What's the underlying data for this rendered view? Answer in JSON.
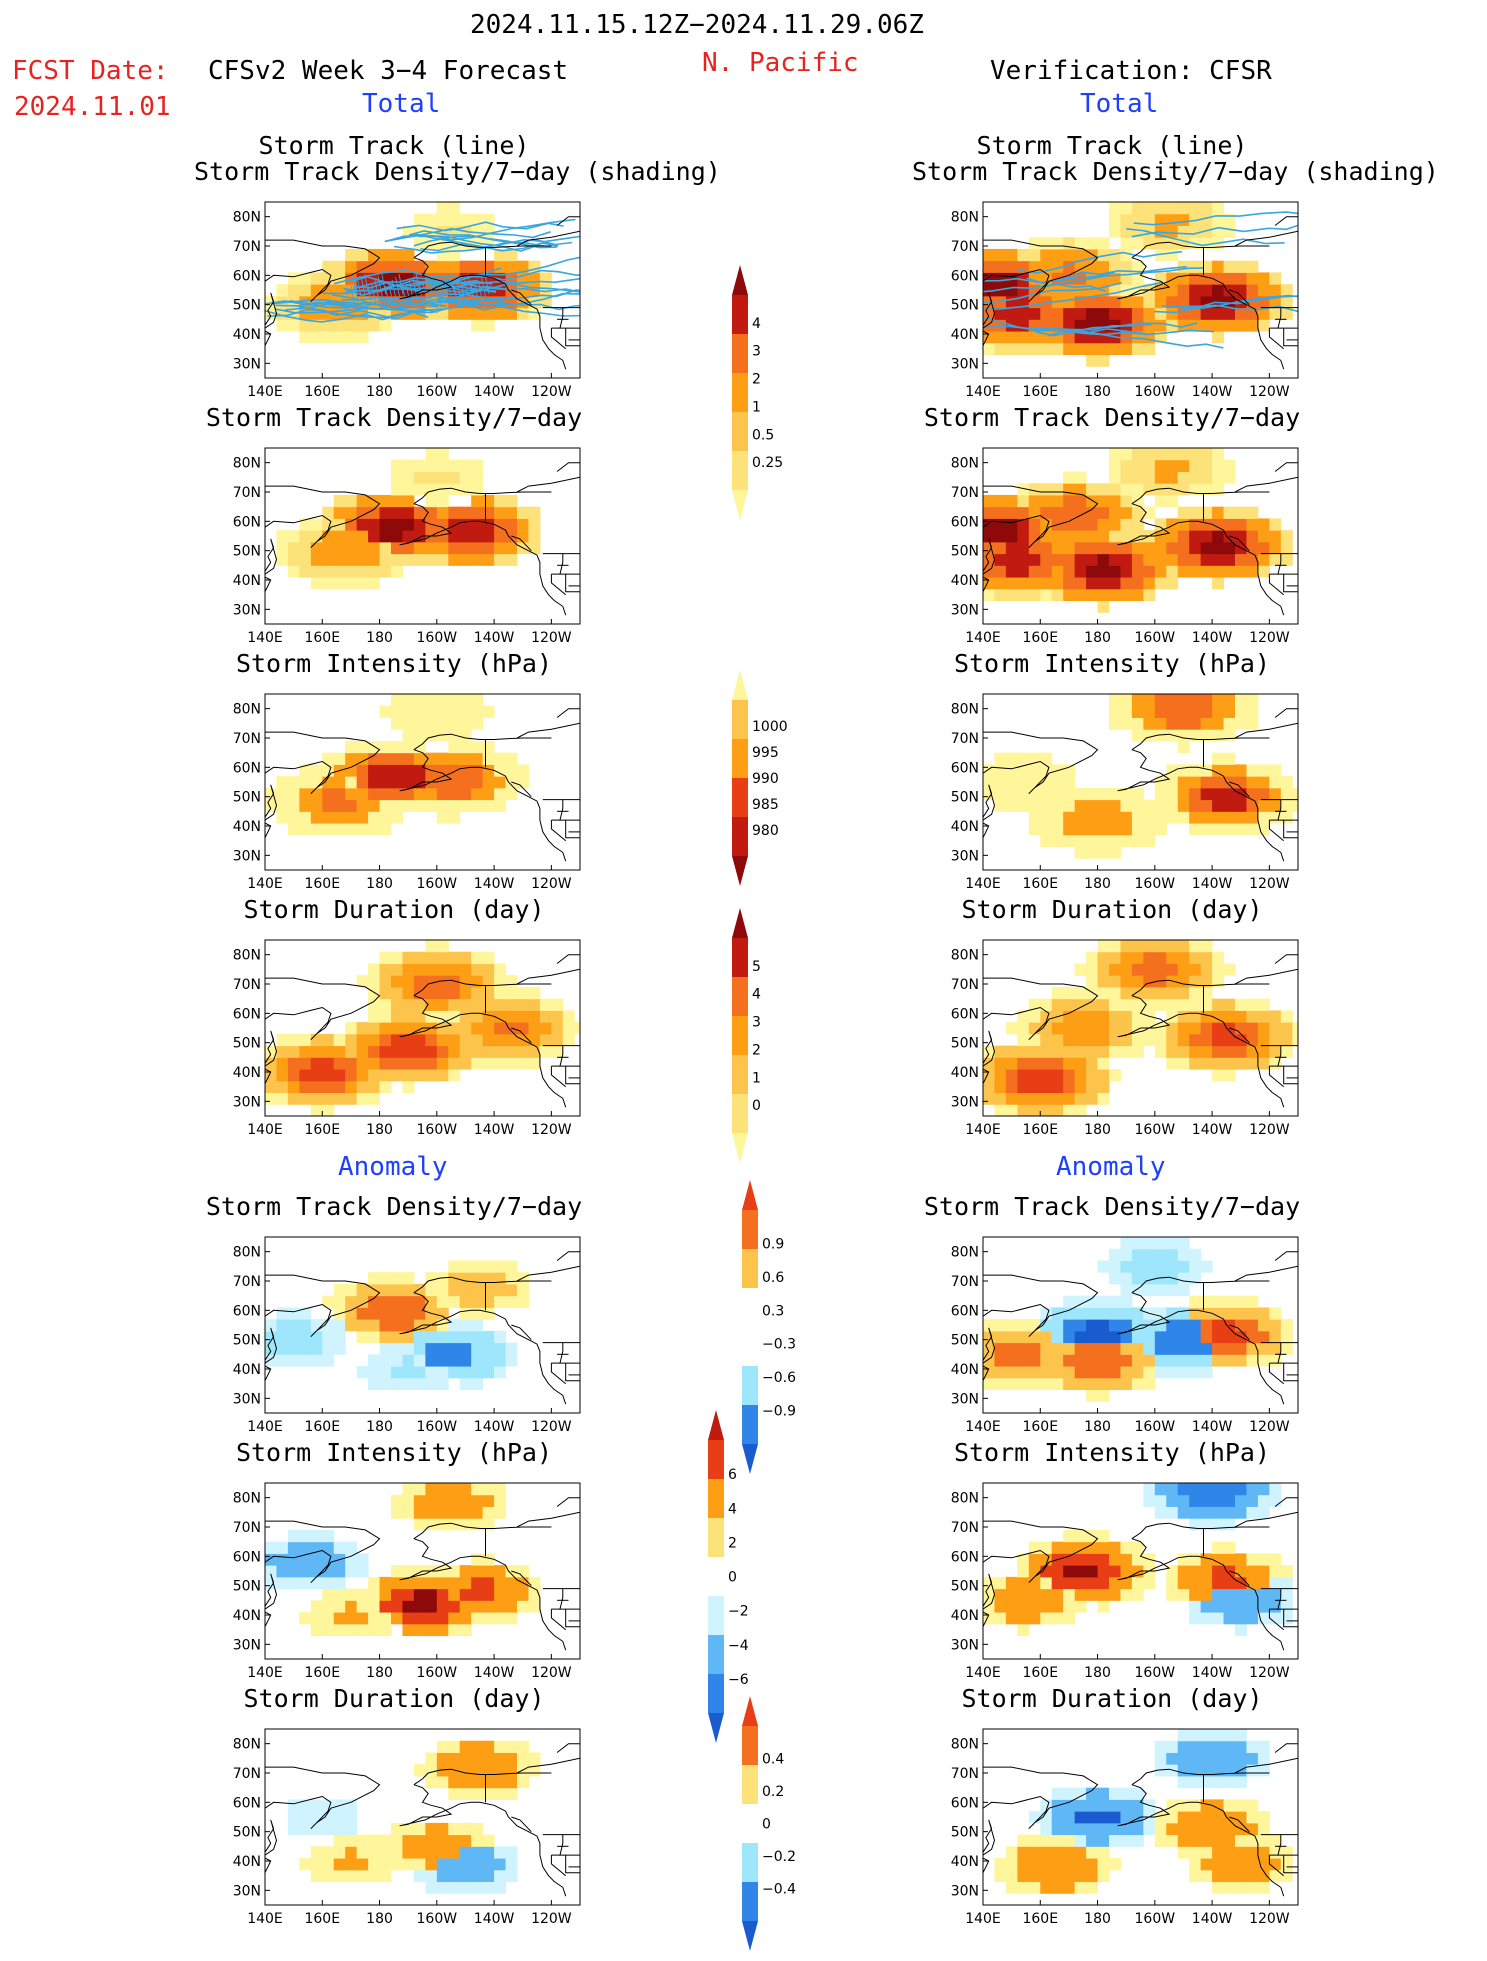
{
  "header": {
    "period": "2024.11.15.12Z−2024.11.29.06Z",
    "fcst_label": "FCST Date:",
    "fcst_date": "2024.11.01",
    "model_title": "CFSv2 Week 3−4 Forecast",
    "region": "N. Pacific",
    "verification": "Verification: CFSR",
    "left_total": "Total",
    "right_total": "Total",
    "left_anomaly": "Anomaly",
    "right_anomaly": "Anomaly"
  },
  "panel_titles": {
    "st_line_1": "Storm Track (line)",
    "st_line_2": "Storm Track Density/7−day (shading)",
    "density": "Storm Track Density/7−day",
    "intensity": "Storm Intensity (hPa)",
    "duration": "Storm Duration (day)"
  },
  "map_axes": {
    "lat_ticks": [
      "80N",
      "70N",
      "60N",
      "50N",
      "40N",
      "30N"
    ],
    "lon_ticks": [
      "140E",
      "160E",
      "180",
      "160W",
      "140W",
      "120W"
    ],
    "lat_range": [
      25,
      85
    ],
    "lon_range": [
      140,
      250
    ]
  },
  "colors": {
    "warm": [
      "#fff59a",
      "#fde27a",
      "#fdc44c",
      "#fd9e14",
      "#f5701e",
      "#e83e16",
      "#c11a10",
      "#8e0a0a"
    ],
    "cool": [
      "#d0f4ff",
      "#9de6fb",
      "#5fb8f5",
      "#2f86e8",
      "#1a5bd0",
      "#0c3fa8"
    ],
    "track_line": "#3aa6e0"
  },
  "colorbars": {
    "density_total": [
      "4",
      "3",
      "2",
      "1",
      "0.5",
      "0.25"
    ],
    "intensity_total": [
      "1000",
      "995",
      "990",
      "985",
      "980"
    ],
    "duration_total": [
      "5",
      "4",
      "3",
      "2",
      "1",
      "0"
    ],
    "density_anom": [
      "0.9",
      "0.6",
      "0.3",
      "−0.3",
      "−0.6",
      "−0.9"
    ],
    "intensity_anom": [
      "6",
      "4",
      "2",
      "0",
      "−2",
      "−4",
      "−6"
    ],
    "duration_anom": [
      "0.4",
      "0.2",
      "0",
      "−0.2",
      "−0.4"
    ]
  },
  "chart_data": [
    {
      "type": "heatmap",
      "title": "Storm Track (line) / Storm Track Density/7−day (shading)",
      "side": "CFSv2 forecast",
      "field": "total",
      "units": "tracks per 7 days",
      "overlay": "storm track lines",
      "blobs": [
        {
          "lon": 185,
          "lat": 57,
          "value": 4
        },
        {
          "lon": 215,
          "lat": 56,
          "value": 3.5
        },
        {
          "lon": 165,
          "lat": 50,
          "value": 1.5
        },
        {
          "lon": 205,
          "lat": 75,
          "value": 0.5
        }
      ]
    },
    {
      "type": "heatmap",
      "title": "Storm Track (line) / Storm Track Density/7−day (shading)",
      "side": "CFSR verification",
      "field": "total",
      "units": "tracks per 7 days",
      "overlay": "storm track lines",
      "blobs": [
        {
          "lon": 145,
          "lat": 57,
          "value": 4
        },
        {
          "lon": 152,
          "lat": 47,
          "value": 3.5
        },
        {
          "lon": 180,
          "lat": 44,
          "value": 4
        },
        {
          "lon": 222,
          "lat": 52,
          "value": 4
        },
        {
          "lon": 170,
          "lat": 60,
          "value": 2
        },
        {
          "lon": 205,
          "lat": 78,
          "value": 1
        }
      ]
    },
    {
      "type": "heatmap",
      "title": "Storm Track Density/7−day",
      "side": "CFSv2 forecast",
      "field": "total",
      "units": "tracks per 7 days",
      "blobs": [
        {
          "lon": 185,
          "lat": 58,
          "value": 4
        },
        {
          "lon": 212,
          "lat": 57,
          "value": 3.5
        },
        {
          "lon": 168,
          "lat": 50,
          "value": 1.5
        },
        {
          "lon": 200,
          "lat": 75,
          "value": 0.5
        }
      ]
    },
    {
      "type": "heatmap",
      "title": "Storm Track Density/7−day",
      "side": "CFSR verification",
      "field": "total",
      "units": "tracks per 7 days",
      "blobs": [
        {
          "lon": 145,
          "lat": 57,
          "value": 4
        },
        {
          "lon": 152,
          "lat": 47,
          "value": 3.5
        },
        {
          "lon": 182,
          "lat": 44,
          "value": 4
        },
        {
          "lon": 222,
          "lat": 52,
          "value": 4
        },
        {
          "lon": 172,
          "lat": 62,
          "value": 2.5
        },
        {
          "lon": 205,
          "lat": 78,
          "value": 1
        }
      ]
    },
    {
      "type": "heatmap",
      "title": "Storm Intensity (hPa)",
      "side": "CFSv2 forecast",
      "field": "total",
      "units": "hPa",
      "blobs": [
        {
          "lon": 185,
          "lat": 57,
          "value": 982
        },
        {
          "lon": 205,
          "lat": 56,
          "value": 986
        },
        {
          "lon": 165,
          "lat": 48,
          "value": 990
        },
        {
          "lon": 200,
          "lat": 78,
          "value": 997
        }
      ]
    },
    {
      "type": "heatmap",
      "title": "Storm Intensity (hPa)",
      "side": "CFSR verification",
      "field": "total",
      "units": "hPa",
      "blobs": [
        {
          "lon": 210,
          "lat": 80,
          "value": 986
        },
        {
          "lon": 225,
          "lat": 50,
          "value": 984
        },
        {
          "lon": 180,
          "lat": 42,
          "value": 992
        },
        {
          "lon": 155,
          "lat": 55,
          "value": 997
        }
      ]
    },
    {
      "type": "heatmap",
      "title": "Storm Duration (day)",
      "side": "CFSv2 forecast",
      "field": "total",
      "units": "days",
      "blobs": [
        {
          "lon": 190,
          "lat": 48,
          "value": 4.5
        },
        {
          "lon": 160,
          "lat": 40,
          "value": 4
        },
        {
          "lon": 200,
          "lat": 70,
          "value": 3.5
        },
        {
          "lon": 225,
          "lat": 55,
          "value": 3
        }
      ]
    },
    {
      "type": "heatmap",
      "title": "Storm Duration (day)",
      "side": "CFSR verification",
      "field": "total",
      "units": "days",
      "blobs": [
        {
          "lon": 160,
          "lat": 38,
          "value": 4.5
        },
        {
          "lon": 225,
          "lat": 52,
          "value": 4
        },
        {
          "lon": 200,
          "lat": 75,
          "value": 3.5
        },
        {
          "lon": 175,
          "lat": 55,
          "value": 2.5
        }
      ]
    },
    {
      "type": "heatmap",
      "title": "Storm Track Density/7−day",
      "side": "CFSv2 forecast",
      "field": "anomaly",
      "units": "tracks per 7 days",
      "blobs": [
        {
          "lon": 185,
          "lat": 60,
          "value": 0.8
        },
        {
          "lon": 215,
          "lat": 68,
          "value": 0.4
        },
        {
          "lon": 205,
          "lat": 45,
          "value": -0.7
        },
        {
          "lon": 150,
          "lat": 50,
          "value": -0.4
        },
        {
          "lon": 190,
          "lat": 40,
          "value": -0.3
        }
      ]
    },
    {
      "type": "heatmap",
      "title": "Storm Track Density/7−day",
      "side": "CFSR verification",
      "field": "anomaly",
      "units": "tracks per 7 days",
      "blobs": [
        {
          "lon": 180,
          "lat": 52,
          "value": -0.9
        },
        {
          "lon": 210,
          "lat": 50,
          "value": -0.8
        },
        {
          "lon": 225,
          "lat": 52,
          "value": 0.9
        },
        {
          "lon": 180,
          "lat": 43,
          "value": 0.8
        },
        {
          "lon": 152,
          "lat": 45,
          "value": 0.7
        },
        {
          "lon": 200,
          "lat": 75,
          "value": -0.4
        }
      ]
    },
    {
      "type": "heatmap",
      "title": "Storm Intensity (hPa)",
      "side": "CFSv2 forecast",
      "field": "anomaly",
      "units": "hPa",
      "blobs": [
        {
          "lon": 195,
          "lat": 44,
          "value": 6
        },
        {
          "lon": 215,
          "lat": 48,
          "value": 4
        },
        {
          "lon": 205,
          "lat": 78,
          "value": 3
        },
        {
          "lon": 155,
          "lat": 58,
          "value": -3
        },
        {
          "lon": 170,
          "lat": 40,
          "value": 2
        }
      ]
    },
    {
      "type": "heatmap",
      "title": "Storm Intensity (hPa)",
      "side": "CFSR verification",
      "field": "anomaly",
      "units": "hPa",
      "blobs": [
        {
          "lon": 175,
          "lat": 55,
          "value": 6
        },
        {
          "lon": 220,
          "lat": 82,
          "value": -5
        },
        {
          "lon": 230,
          "lat": 45,
          "value": -3
        },
        {
          "lon": 225,
          "lat": 52,
          "value": 4
        },
        {
          "lon": 155,
          "lat": 45,
          "value": 3
        }
      ]
    },
    {
      "type": "heatmap",
      "title": "Storm Duration (day)",
      "side": "CFSv2 forecast",
      "field": "anomaly",
      "units": "days",
      "blobs": [
        {
          "lon": 215,
          "lat": 72,
          "value": 0.35
        },
        {
          "lon": 200,
          "lat": 45,
          "value": 0.3
        },
        {
          "lon": 160,
          "lat": 55,
          "value": -0.15
        },
        {
          "lon": 210,
          "lat": 38,
          "value": -0.3
        },
        {
          "lon": 170,
          "lat": 40,
          "value": 0.2
        }
      ]
    },
    {
      "type": "heatmap",
      "title": "Storm Duration (day)",
      "side": "CFSR verification",
      "field": "anomaly",
      "units": "days",
      "blobs": [
        {
          "lon": 180,
          "lat": 55,
          "value": -0.4
        },
        {
          "lon": 220,
          "lat": 75,
          "value": -0.35
        },
        {
          "lon": 220,
          "lat": 52,
          "value": 0.35
        },
        {
          "lon": 165,
          "lat": 38,
          "value": 0.35
        },
        {
          "lon": 230,
          "lat": 40,
          "value": 0.3
        }
      ]
    }
  ]
}
